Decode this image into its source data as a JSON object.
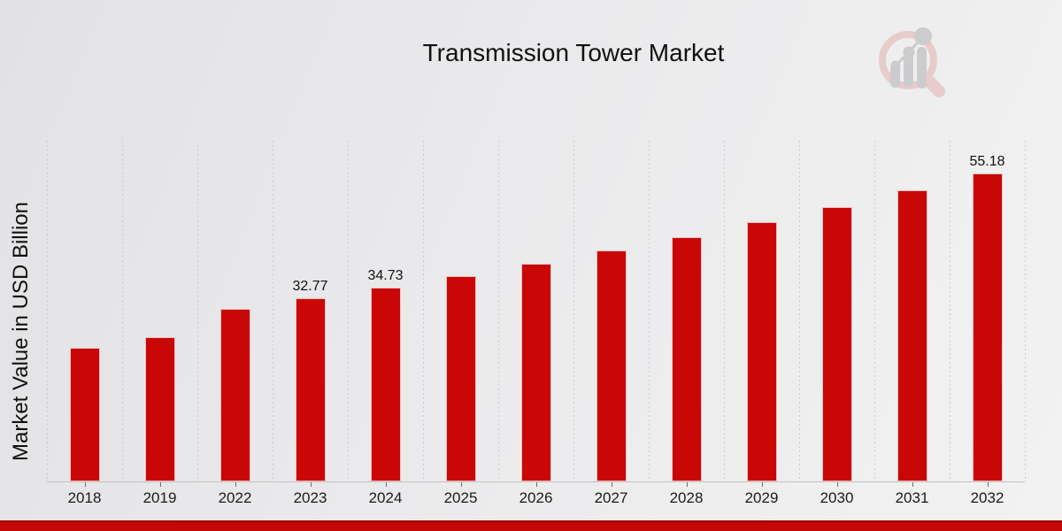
{
  "page": {
    "title": "Transmission Tower Market",
    "ylabel": "Market Value in USD Billion"
  },
  "colors": {
    "bar": "#c90707",
    "banner": "#c40707",
    "background_light": "#f2f2f2",
    "background_dark": "#e2e2e4",
    "gridline": "#cdcdcf",
    "axis_line": "#c2c2c3",
    "text": "#111111",
    "logo_pink": "#e7c6c5",
    "logo_gray": "#c7c7c9"
  },
  "chart_data": {
    "type": "bar",
    "title": "Transmission Tower Market",
    "xlabel": "",
    "ylabel": "Market Value in USD Billion",
    "categories": [
      "2018",
      "2019",
      "2022",
      "2023",
      "2024",
      "2025",
      "2026",
      "2027",
      "2028",
      "2029",
      "2030",
      "2031",
      "2032"
    ],
    "values": [
      23.9,
      25.9,
      30.9,
      32.77,
      34.73,
      36.8,
      39.0,
      41.3,
      43.8,
      46.4,
      49.1,
      52.1,
      55.18
    ],
    "data_labels": [
      null,
      null,
      null,
      "32.77",
      "34.73",
      null,
      null,
      null,
      null,
      null,
      null,
      null,
      "55.18"
    ],
    "ylim": [
      0,
      61
    ],
    "grid": "vertical-dotted",
    "legend_position": "none",
    "bar_color": "#c90707"
  }
}
